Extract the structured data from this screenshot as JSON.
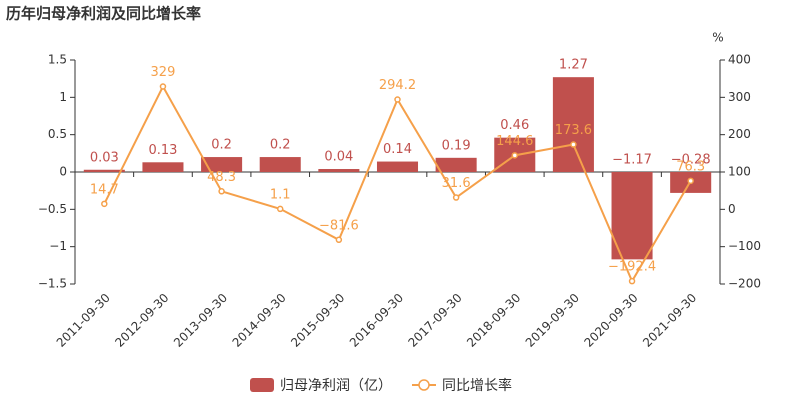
{
  "chart_data": {
    "type": "bar",
    "title": "历年归母净利润及同比增长率",
    "y2_unit": "%",
    "categories": [
      "2011-09-30",
      "2012-09-30",
      "2013-09-30",
      "2014-09-30",
      "2015-09-30",
      "2016-09-30",
      "2017-09-30",
      "2018-09-30",
      "2019-09-30",
      "2020-09-30",
      "2021-09-30"
    ],
    "series": [
      {
        "name": "归母净利润（亿）",
        "type": "bar",
        "color": "#c0504d",
        "values": [
          0.03,
          0.13,
          0.2,
          0.2,
          0.04,
          0.14,
          0.19,
          0.46,
          1.27,
          -1.17,
          -0.28
        ],
        "value_labels": [
          "0.03",
          "0.13",
          "0.2",
          "0.2",
          "0.04",
          "0.14",
          "0.19",
          "0.46",
          "1.27",
          "−1.17",
          "−0.28"
        ]
      },
      {
        "name": "同比增长率",
        "type": "line",
        "axis": "y2",
        "color": "#f5a04a",
        "values": [
          14.7,
          329,
          48.3,
          1.1,
          -81.6,
          294.2,
          31.6,
          144.6,
          173.6,
          -192.4,
          76.3
        ],
        "value_labels": [
          "14.7",
          "329",
          "48.3",
          "1.1",
          "−81.6",
          "294.2",
          "31.6",
          "144.6",
          "173.6",
          "−192.4",
          "76.3"
        ]
      }
    ],
    "ylim": [
      -1.5,
      1.5
    ],
    "yticks": [
      {
        "value": -1.5,
        "label": "−1.5"
      },
      {
        "value": -1,
        "label": "−1"
      },
      {
        "value": -0.5,
        "label": "−0.5"
      },
      0,
      0.5,
      1,
      1.5
    ],
    "y2lim": [
      -200,
      400
    ],
    "y2ticks": [
      {
        "value": -200,
        "label": "−200"
      },
      {
        "value": -100,
        "label": "−100"
      },
      0,
      100,
      200,
      300,
      400
    ]
  }
}
